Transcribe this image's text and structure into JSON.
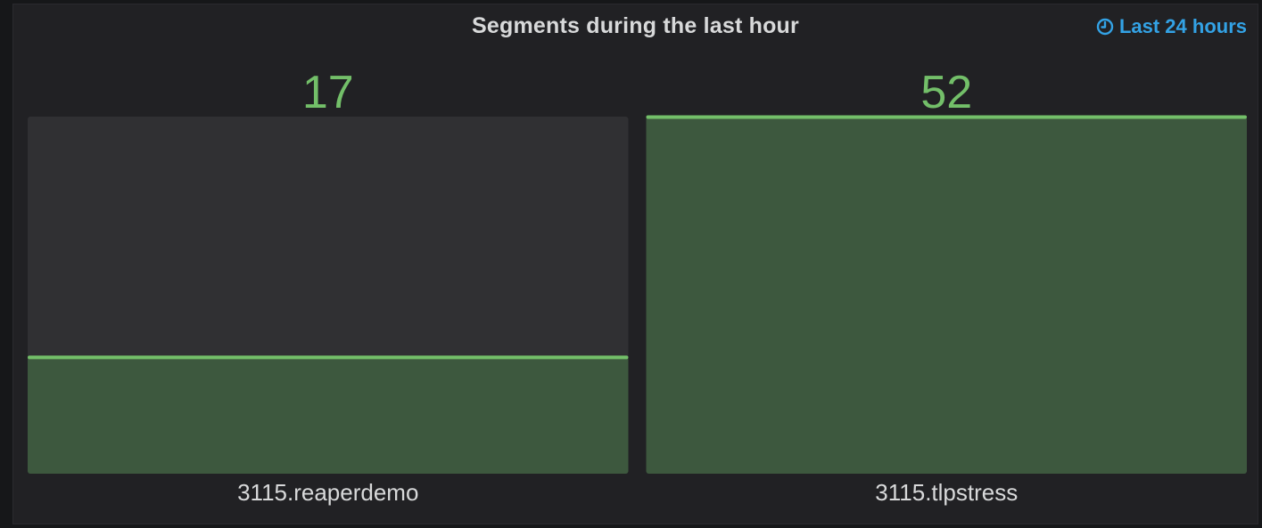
{
  "panel": {
    "title": "Segments during the last hour",
    "time_range": "Last 24 hours",
    "time_icon": "clock-icon"
  },
  "colors": {
    "background": "#161719",
    "panel_bg": "#212124",
    "bar_track": "#303033",
    "bar_fill": "#3d583e",
    "bar_edge": "#73bf69",
    "value_text": "#73bf69",
    "label_text": "#d8d9da",
    "time_link": "#33a2e5"
  },
  "chart_data": {
    "type": "bar",
    "categories": [
      "3115.reaperdemo",
      "3115.tlpstress"
    ],
    "values": [
      17,
      52
    ],
    "ylim": [
      0,
      52
    ],
    "grid": false
  }
}
